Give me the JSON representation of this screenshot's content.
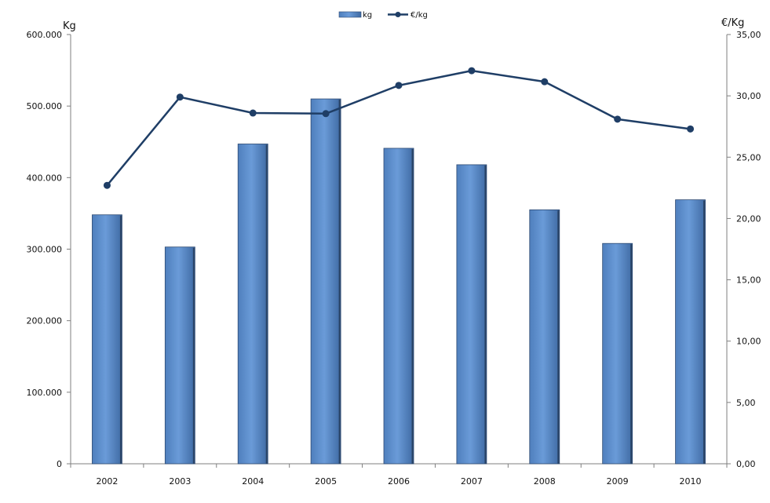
{
  "chart_data": {
    "type": "bar",
    "categories": [
      "2002",
      "2003",
      "2004",
      "2005",
      "2006",
      "2007",
      "2008",
      "2009",
      "2010"
    ],
    "series": [
      {
        "name": "kg",
        "type": "bar",
        "axis": "left",
        "values": [
          348000,
          303000,
          447000,
          510000,
          441000,
          418000,
          355000,
          308000,
          369000
        ]
      },
      {
        "name": "€/kg",
        "type": "line",
        "axis": "right",
        "values": [
          22.7,
          29.9,
          28.6,
          28.55,
          30.85,
          32.05,
          31.15,
          28.1,
          27.3
        ]
      }
    ],
    "y_left": {
      "label": "Kg",
      "ylim": [
        0,
        600000
      ],
      "ticks": [
        "0",
        "100.000",
        "200.000",
        "300.000",
        "400.000",
        "500.000",
        "600.000"
      ]
    },
    "y_right": {
      "label": "€/Kg",
      "ylim": [
        0,
        35
      ],
      "ticks": [
        "0,00",
        "5,00",
        "10,00",
        "15,00",
        "20,00",
        "25,00",
        "30,00",
        "35,00"
      ]
    },
    "legend": {
      "position": "top"
    },
    "grid": false,
    "colors": {
      "bar_fill": "#5b8fd0",
      "bar_stroke": "#2e4a72",
      "line": "#1f3e66",
      "axis": "#7f7f7f"
    }
  }
}
